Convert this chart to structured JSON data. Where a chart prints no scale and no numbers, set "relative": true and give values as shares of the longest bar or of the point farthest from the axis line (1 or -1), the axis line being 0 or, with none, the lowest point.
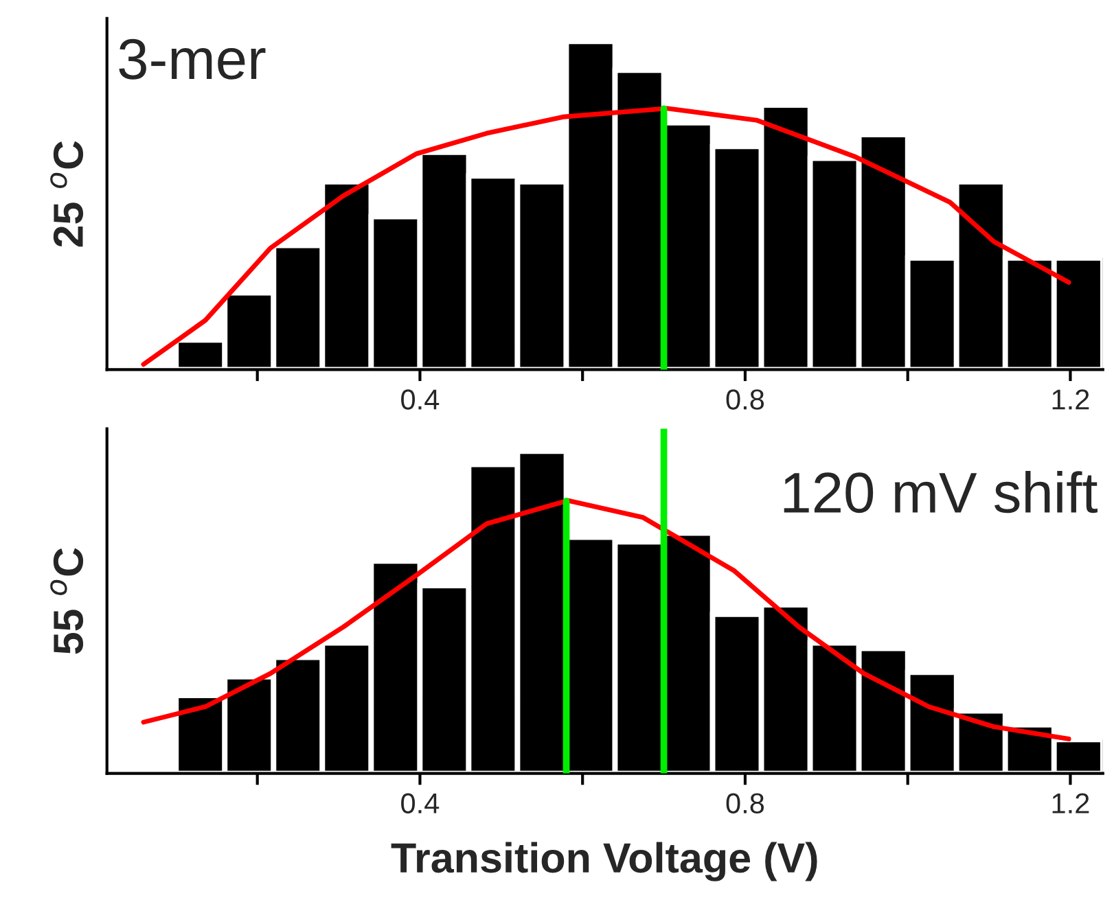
{
  "chart_data": [
    {
      "type": "histogram",
      "relative": true,
      "ylabel": "25 $^{o}$C",
      "annotations": [
        "3-mer"
      ],
      "tick_labels": "x",
      "bins": [
        0.1,
        0.16,
        0.22,
        0.28,
        0.34,
        0.4,
        0.46,
        0.52,
        0.58,
        0.64,
        0.7,
        0.76,
        0.82,
        0.88,
        0.94,
        1.0,
        1.06,
        1.12,
        1.18,
        1.24
      ],
      "values": [
        0.09,
        0.234,
        0.378,
        0.572,
        0.466,
        0.662,
        0.59,
        0.572,
        1,
        0.912,
        0.752,
        0.68,
        0.806,
        0.644,
        0.716,
        0.34,
        0.572,
        0.34,
        0.34
      ],
      "color": "#000000",
      "series": [
        {
          "type": "line",
          "color": "#ff0000",
          "x": [
            0.06,
            0.136,
            0.216,
            0.306,
            0.396,
            0.482,
            0.576,
            0.704,
            0.814,
            0.934,
            1.052,
            1.106,
            1.198
          ],
          "values": [
            0.016,
            0.15,
            0.37,
            0.53,
            0.658,
            0.72,
            0.77,
            0.796,
            0.76,
            0.65,
            0.51,
            0.39,
            0.266
          ]
        }
      ],
      "ref_lines": [
        {
          "axis": "x",
          "value": 0.7,
          "color": "#00ee00"
        }
      ],
      "xlim": [
        0.015,
        1.24
      ],
      "xticks": [
        {
          "value": 0.2,
          "label": null
        },
        0.4,
        {
          "value": 0.6,
          "label": null
        },
        0.8,
        {
          "value": 1.0,
          "label": null
        },
        1.2
      ],
      "grid": false,
      "legend": false
    },
    {
      "type": "histogram",
      "relative": true,
      "ylabel": "55 $^{o}$C",
      "xlabel": "Transition Voltage (V)",
      "annotations": [
        "120 mV shift"
      ],
      "tick_labels": "x",
      "bins": [
        0.1,
        0.16,
        0.22,
        0.28,
        0.34,
        0.4,
        0.46,
        0.52,
        0.58,
        0.64,
        0.7,
        0.76,
        0.82,
        0.88,
        0.94,
        1.0,
        1.06,
        1.12,
        1.18,
        1.24
      ],
      "values": [
        0.242,
        0.3,
        0.36,
        0.405,
        0.659,
        0.583,
        0.959,
        1,
        0.733,
        0.719,
        0.746,
        0.494,
        0.523,
        0.405,
        0.388,
        0.314,
        0.194,
        0.151,
        0.105
      ],
      "color": "#000000",
      "series": [
        {
          "type": "line",
          "color": "#ff0000",
          "x": [
            0.06,
            0.136,
            0.216,
            0.306,
            0.396,
            0.482,
            0.582,
            0.674,
            0.786,
            0.866,
            0.946,
            1.026,
            1.106,
            1.198
          ],
          "values": [
            0.159,
            0.207,
            0.31,
            0.455,
            0.616,
            0.775,
            0.847,
            0.795,
            0.63,
            0.455,
            0.31,
            0.207,
            0.145,
            0.107
          ]
        }
      ],
      "ref_lines": [
        {
          "axis": "x",
          "value": 0.58,
          "color": "#00ee00"
        },
        {
          "axis": "x",
          "value": 0.7,
          "color": "#00ee00"
        }
      ],
      "xlim": [
        0.015,
        1.24
      ],
      "xticks": [
        {
          "value": 0.2,
          "label": null
        },
        0.4,
        {
          "value": 0.6,
          "label": null
        },
        0.8,
        {
          "value": 1.0,
          "label": null
        },
        1.2
      ],
      "grid": false,
      "legend": false
    }
  ]
}
